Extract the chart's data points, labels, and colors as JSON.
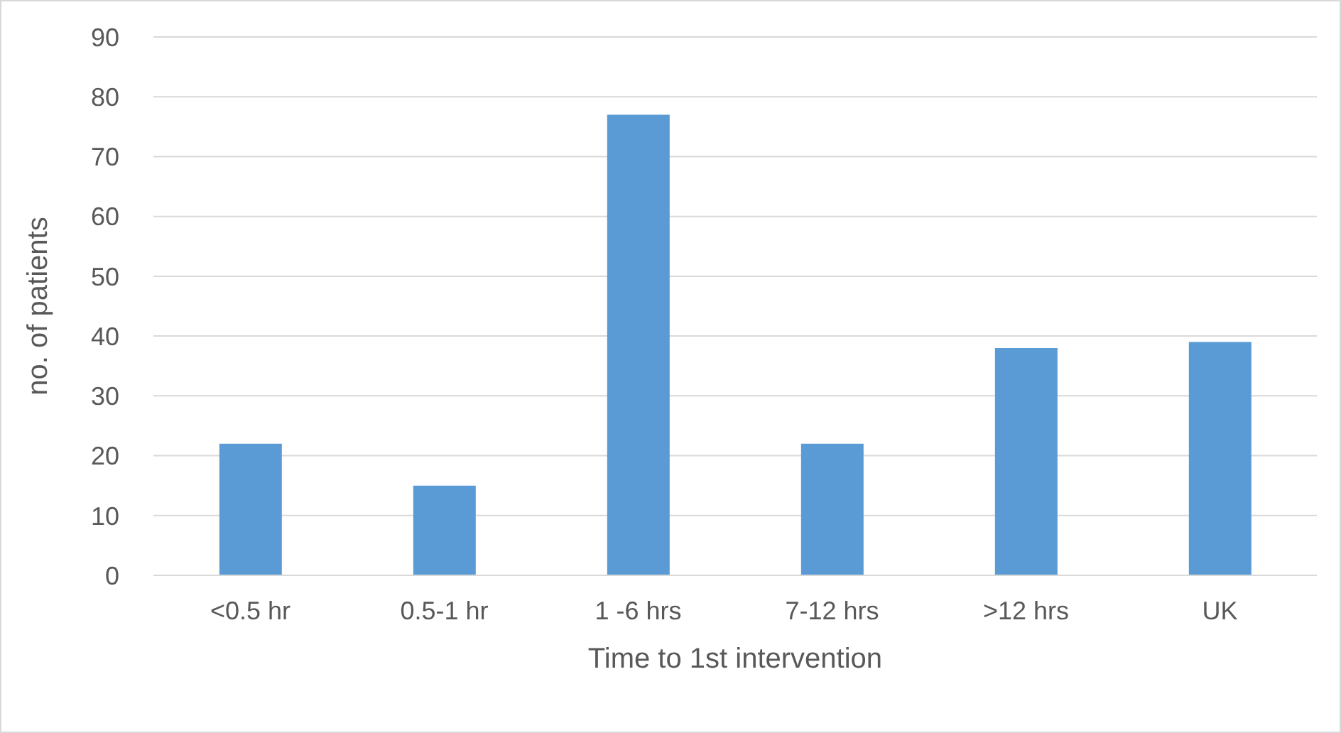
{
  "chart_data": {
    "type": "bar",
    "xlabel": "Time to 1st intervention",
    "ylabel": "no. of patients",
    "categories": [
      "<0.5 hr",
      "0.5-1 hr",
      "1 -6 hrs",
      "7-12 hrs",
      ">12 hrs",
      "UK"
    ],
    "values": [
      22,
      15,
      77,
      22,
      38,
      39
    ],
    "color": "#5b9bd5",
    "ylim": [
      0,
      90
    ],
    "yticks": [
      0,
      10,
      20,
      30,
      40,
      50,
      60,
      70,
      80,
      90
    ],
    "grid": "y"
  }
}
